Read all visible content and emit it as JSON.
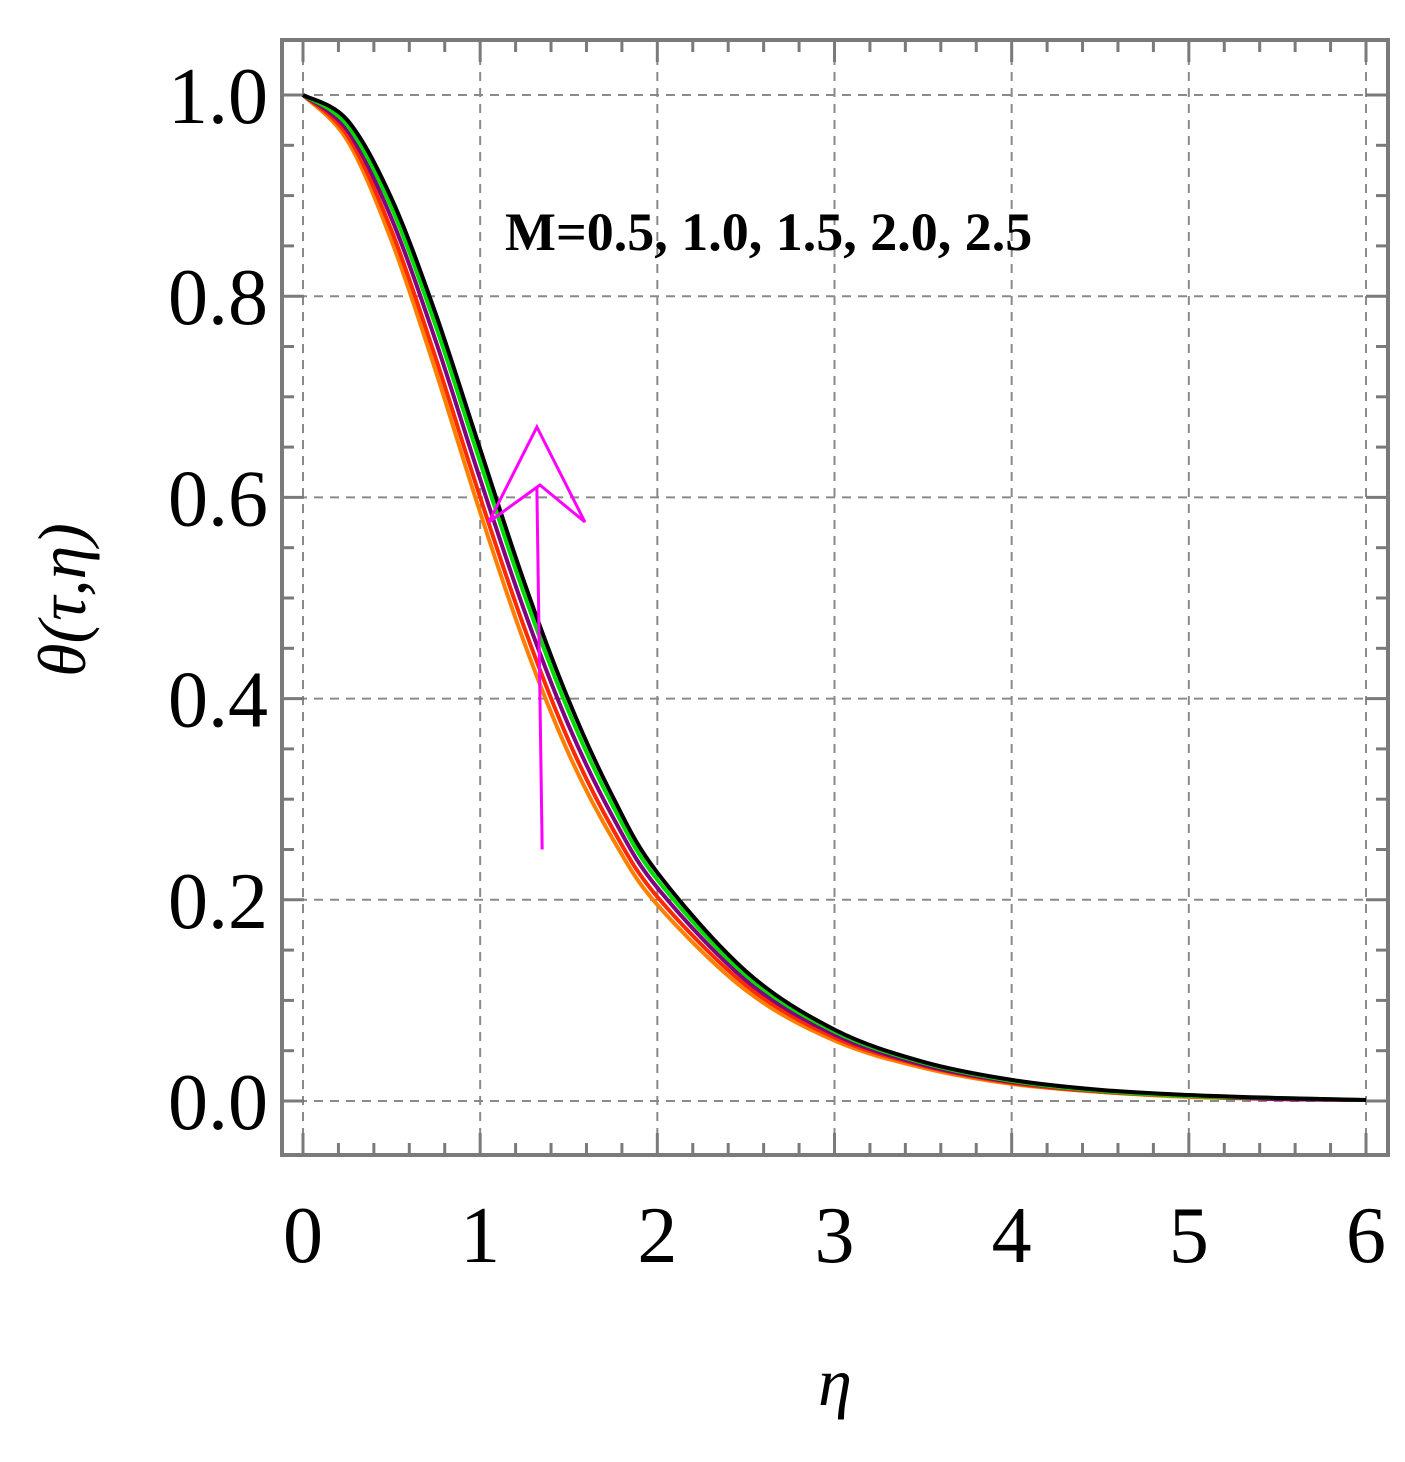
{
  "chart_data": {
    "type": "line",
    "xlabel": "η",
    "ylabel": "θ(τ,η)",
    "xlim": [
      0,
      6
    ],
    "ylim": [
      0,
      1
    ],
    "x_ticks": [
      "0",
      "1",
      "2",
      "3",
      "4",
      "5",
      "6"
    ],
    "y_ticks": [
      "0.0",
      "0.2",
      "0.4",
      "0.6",
      "0.8",
      "1.0"
    ],
    "grid": true,
    "annotation": "M=0.5, 1.0, 1.5, 2.0, 2.5",
    "arrow": {
      "from": [
        1.35,
        0.25
      ],
      "to": [
        1.32,
        0.67
      ],
      "color": "#ff00ff"
    },
    "x": [
      0,
      0.25,
      0.5,
      0.75,
      1.0,
      1.25,
      1.5,
      1.75,
      2.0,
      2.5,
      3.0,
      3.5,
      4.0,
      4.5,
      5.0,
      5.5,
      6.0
    ],
    "series": [
      {
        "color": "#ff8000",
        "values": [
          1.0,
          0.955,
          0.855,
          0.725,
          0.585,
          0.455,
          0.345,
          0.26,
          0.195,
          0.11,
          0.06,
          0.033,
          0.017,
          0.009,
          0.004,
          0.002,
          0.001
        ]
      },
      {
        "color": "#ff2a00",
        "values": [
          1.0,
          0.96,
          0.865,
          0.738,
          0.6,
          0.47,
          0.358,
          0.27,
          0.203,
          0.115,
          0.063,
          0.035,
          0.018,
          0.009,
          0.005,
          0.002,
          0.001
        ]
      },
      {
        "color": "#800080",
        "values": [
          1.0,
          0.965,
          0.877,
          0.755,
          0.618,
          0.487,
          0.373,
          0.282,
          0.212,
          0.12,
          0.066,
          0.036,
          0.019,
          0.01,
          0.005,
          0.002,
          0.001
        ]
      },
      {
        "color": "#00dd00",
        "values": [
          1.0,
          0.97,
          0.888,
          0.77,
          0.635,
          0.503,
          0.387,
          0.293,
          0.22,
          0.125,
          0.069,
          0.038,
          0.02,
          0.01,
          0.005,
          0.003,
          0.001
        ]
      },
      {
        "color": "#000000",
        "values": [
          1.0,
          0.975,
          0.897,
          0.782,
          0.648,
          0.515,
          0.398,
          0.302,
          0.227,
          0.129,
          0.071,
          0.039,
          0.021,
          0.011,
          0.006,
          0.003,
          0.001
        ]
      }
    ]
  }
}
